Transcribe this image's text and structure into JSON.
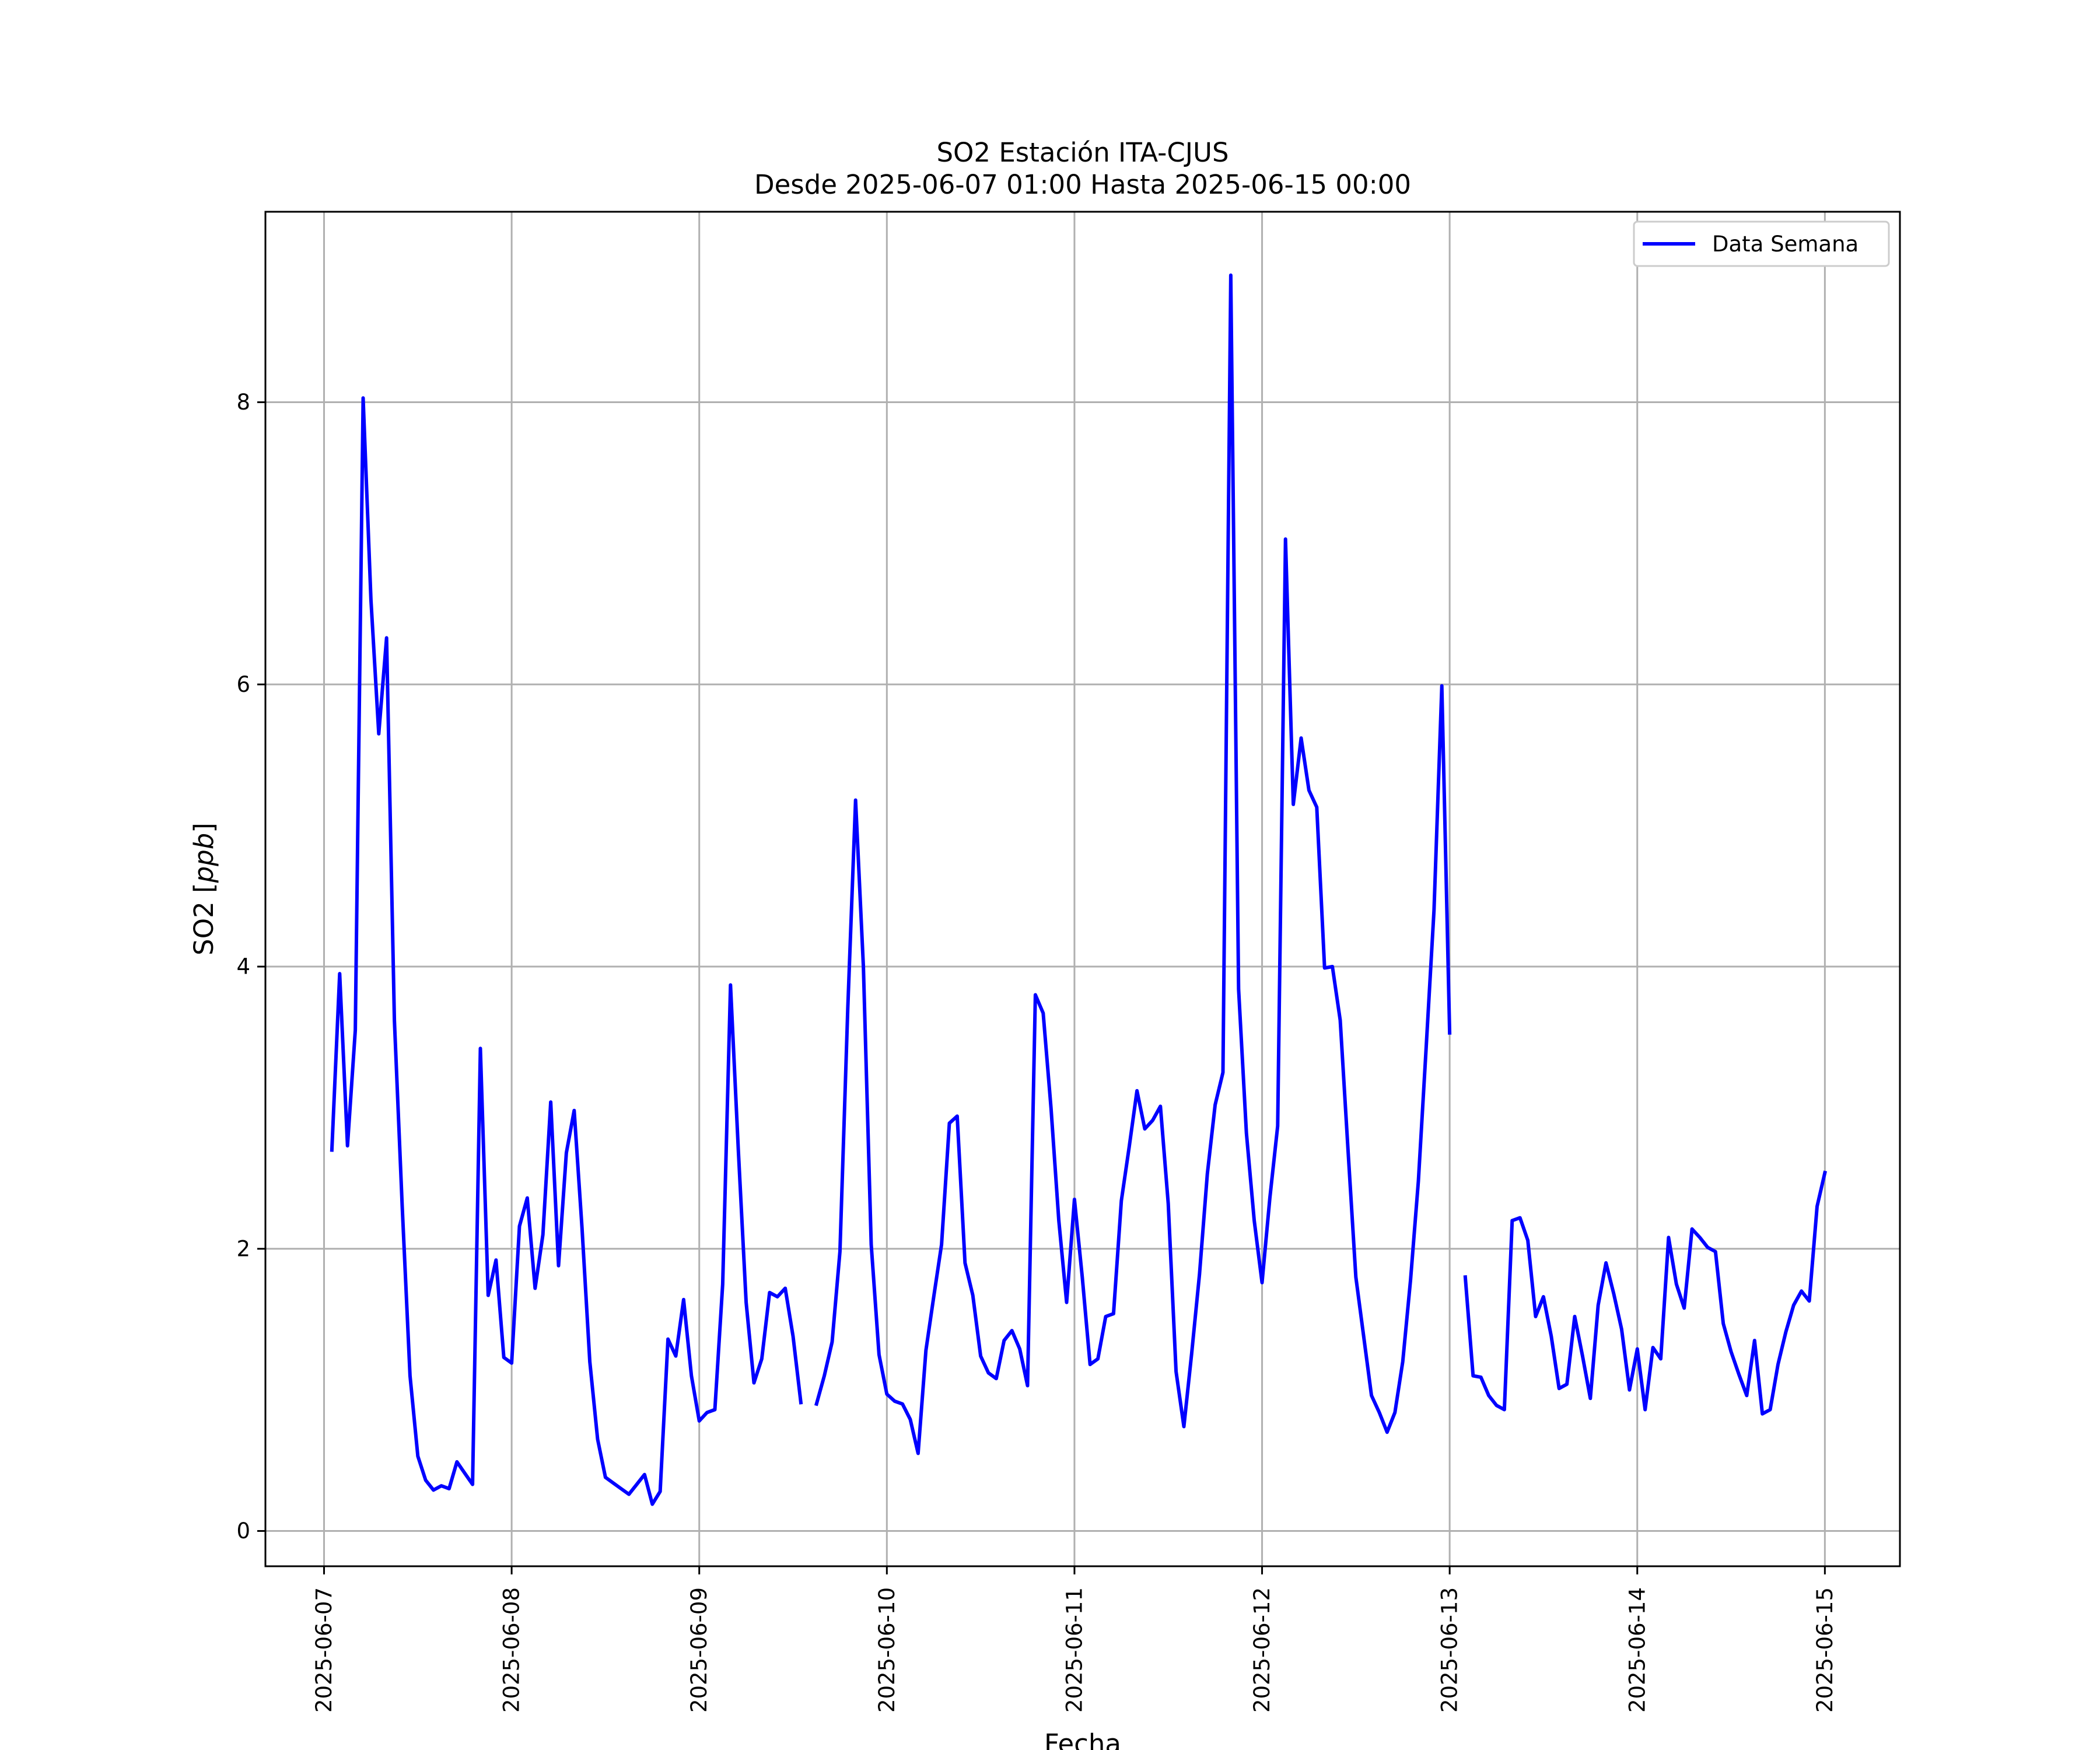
{
  "chart_data": {
    "type": "line",
    "title": "SO2 Estación ITA-CJUS",
    "subtitle": "Desde 2025-06-07 01:00 Hasta 2025-06-15 00:00",
    "xlabel": "Fecha",
    "ylabel": "SO2 [ppb]",
    "xlim": [
      "2025-06-06 16:30",
      "2025-06-15 09:36"
    ],
    "ylim": [
      -0.25,
      9.35
    ],
    "x_ticks": [
      "2025-06-07",
      "2025-06-08",
      "2025-06-09",
      "2025-06-10",
      "2025-06-11",
      "2025-06-12",
      "2025-06-13",
      "2025-06-14",
      "2025-06-15"
    ],
    "y_ticks": [
      0,
      2,
      4,
      6,
      8
    ],
    "grid": true,
    "legend_position": "top-right",
    "series": [
      {
        "name": "Data Semana",
        "color": "#0000ff",
        "points": [
          [
            "2025-06-07 01:00",
            2.7
          ],
          [
            "2025-06-07 02:00",
            3.95
          ],
          [
            "2025-06-07 03:00",
            2.73
          ],
          [
            "2025-06-07 04:00",
            3.55
          ],
          [
            "2025-06-07 05:00",
            8.03
          ],
          [
            "2025-06-07 06:00",
            6.6
          ],
          [
            "2025-06-07 07:00",
            5.65
          ],
          [
            "2025-06-07 08:00",
            6.33
          ],
          [
            "2025-06-07 09:00",
            3.62
          ],
          [
            "2025-06-07 10:00",
            2.3
          ],
          [
            "2025-06-07 11:00",
            1.1
          ],
          [
            "2025-06-07 12:00",
            0.53
          ],
          [
            "2025-06-07 13:00",
            0.36
          ],
          [
            "2025-06-07 14:00",
            0.29
          ],
          [
            "2025-06-07 15:00",
            0.32
          ],
          [
            "2025-06-07 16:00",
            0.3
          ],
          [
            "2025-06-07 17:00",
            0.49
          ],
          [
            "2025-06-07 18:00",
            0.41
          ],
          [
            "2025-06-07 19:00",
            0.33
          ],
          [
            "2025-06-07 20:00",
            3.42
          ],
          [
            "2025-06-07 21:00",
            1.67
          ],
          [
            "2025-06-07 22:00",
            1.92
          ],
          [
            "2025-06-07 23:00",
            1.23
          ],
          [
            "2025-06-08 00:00",
            1.19
          ],
          [
            "2025-06-08 01:00",
            2.16
          ],
          [
            "2025-06-08 02:00",
            2.36
          ],
          [
            "2025-06-08 03:00",
            1.72
          ],
          [
            "2025-06-08 04:00",
            2.1
          ],
          [
            "2025-06-08 05:00",
            3.04
          ],
          [
            "2025-06-08 06:00",
            1.88
          ],
          [
            "2025-06-08 07:00",
            2.68
          ],
          [
            "2025-06-08 08:00",
            2.98
          ],
          [
            "2025-06-08 09:00",
            2.15
          ],
          [
            "2025-06-08 10:00",
            1.2
          ],
          [
            "2025-06-08 11:00",
            0.65
          ],
          [
            "2025-06-08 12:00",
            0.38
          ],
          [
            "2025-06-08 13:00",
            0.34
          ],
          [
            "2025-06-08 14:00",
            0.3
          ],
          [
            "2025-06-08 15:00",
            0.26
          ],
          [
            "2025-06-08 16:00",
            0.33
          ],
          [
            "2025-06-08 17:00",
            0.4
          ],
          [
            "2025-06-08 18:00",
            0.19
          ],
          [
            "2025-06-08 19:00",
            0.28
          ],
          [
            "2025-06-08 20:00",
            1.36
          ],
          [
            "2025-06-08 21:00",
            1.24
          ],
          [
            "2025-06-08 22:00",
            1.64
          ],
          [
            "2025-06-08 23:00",
            1.1
          ],
          [
            "2025-06-09 00:00",
            0.78
          ],
          [
            "2025-06-09 01:00",
            0.84
          ],
          [
            "2025-06-09 02:00",
            0.86
          ],
          [
            "2025-06-09 03:00",
            1.75
          ],
          [
            "2025-06-09 04:00",
            3.87
          ],
          [
            "2025-06-09 05:00",
            2.7
          ],
          [
            "2025-06-09 06:00",
            1.62
          ],
          [
            "2025-06-09 07:00",
            1.05
          ],
          [
            "2025-06-09 08:00",
            1.22
          ],
          [
            "2025-06-09 09:00",
            1.69
          ],
          [
            "2025-06-09 10:00",
            1.66
          ],
          [
            "2025-06-09 11:00",
            1.72
          ],
          [
            "2025-06-09 12:00",
            1.38
          ],
          [
            "2025-06-09 13:00",
            0.91
          ],
          [
            "2025-06-09 14:00",
            null
          ],
          [
            "2025-06-09 15:00",
            0.9
          ],
          [
            "2025-06-09 16:00",
            1.1
          ],
          [
            "2025-06-09 17:00",
            1.34
          ],
          [
            "2025-06-09 18:00",
            1.98
          ],
          [
            "2025-06-09 19:00",
            3.7
          ],
          [
            "2025-06-09 20:00",
            5.18
          ],
          [
            "2025-06-09 21:00",
            4.0
          ],
          [
            "2025-06-09 22:00",
            2.03
          ],
          [
            "2025-06-09 23:00",
            1.25
          ],
          [
            "2025-06-10 00:00",
            0.97
          ],
          [
            "2025-06-10 01:00",
            0.92
          ],
          [
            "2025-06-10 02:00",
            0.9
          ],
          [
            "2025-06-10 03:00",
            0.79
          ],
          [
            "2025-06-10 04:00",
            0.55
          ],
          [
            "2025-06-10 05:00",
            1.28
          ],
          [
            "2025-06-10 06:00",
            1.66
          ],
          [
            "2025-06-10 07:00",
            2.03
          ],
          [
            "2025-06-10 08:00",
            2.89
          ],
          [
            "2025-06-10 09:00",
            2.94
          ],
          [
            "2025-06-10 10:00",
            1.9
          ],
          [
            "2025-06-10 11:00",
            1.67
          ],
          [
            "2025-06-10 12:00",
            1.24
          ],
          [
            "2025-06-10 13:00",
            1.12
          ],
          [
            "2025-06-10 14:00",
            1.08
          ],
          [
            "2025-06-10 15:00",
            1.35
          ],
          [
            "2025-06-10 16:00",
            1.42
          ],
          [
            "2025-06-10 17:00",
            1.29
          ],
          [
            "2025-06-10 18:00",
            1.03
          ],
          [
            "2025-06-10 19:00",
            3.8
          ],
          [
            "2025-06-10 20:00",
            3.67
          ],
          [
            "2025-06-10 21:00",
            3.0
          ],
          [
            "2025-06-10 22:00",
            2.2
          ],
          [
            "2025-06-10 23:00",
            1.62
          ],
          [
            "2025-06-11 00:00",
            2.35
          ],
          [
            "2025-06-11 01:00",
            1.8
          ],
          [
            "2025-06-11 02:00",
            1.18
          ],
          [
            "2025-06-11 03:00",
            1.22
          ],
          [
            "2025-06-11 04:00",
            1.52
          ],
          [
            "2025-06-11 05:00",
            1.54
          ],
          [
            "2025-06-11 06:00",
            2.34
          ],
          [
            "2025-06-11 07:00",
            2.72
          ],
          [
            "2025-06-11 08:00",
            3.12
          ],
          [
            "2025-06-11 09:00",
            2.85
          ],
          [
            "2025-06-11 10:00",
            2.91
          ],
          [
            "2025-06-11 11:00",
            3.01
          ],
          [
            "2025-06-11 12:00",
            2.32
          ],
          [
            "2025-06-11 13:00",
            1.13
          ],
          [
            "2025-06-11 14:00",
            0.74
          ],
          [
            "2025-06-11 15:00",
            1.26
          ],
          [
            "2025-06-11 16:00",
            1.82
          ],
          [
            "2025-06-11 17:00",
            2.53
          ],
          [
            "2025-06-11 18:00",
            3.02
          ],
          [
            "2025-06-11 19:00",
            3.25
          ],
          [
            "2025-06-11 20:00",
            8.9
          ],
          [
            "2025-06-11 21:00",
            3.84
          ],
          [
            "2025-06-11 22:00",
            2.82
          ],
          [
            "2025-06-11 23:00",
            2.2
          ],
          [
            "2025-06-12 00:00",
            1.76
          ],
          [
            "2025-06-12 01:00",
            2.36
          ],
          [
            "2025-06-12 02:00",
            2.87
          ],
          [
            "2025-06-12 03:00",
            7.03
          ],
          [
            "2025-06-12 04:00",
            5.15
          ],
          [
            "2025-06-12 05:00",
            5.62
          ],
          [
            "2025-06-12 06:00",
            5.25
          ],
          [
            "2025-06-12 07:00",
            5.13
          ],
          [
            "2025-06-12 08:00",
            3.99
          ],
          [
            "2025-06-12 09:00",
            4.0
          ],
          [
            "2025-06-12 10:00",
            3.62
          ],
          [
            "2025-06-12 11:00",
            2.7
          ],
          [
            "2025-06-12 12:00",
            1.8
          ],
          [
            "2025-06-12 13:00",
            1.38
          ],
          [
            "2025-06-12 14:00",
            0.96
          ],
          [
            "2025-06-12 15:00",
            0.84
          ],
          [
            "2025-06-12 16:00",
            0.7
          ],
          [
            "2025-06-12 17:00",
            0.84
          ],
          [
            "2025-06-12 18:00",
            1.2
          ],
          [
            "2025-06-12 19:00",
            1.78
          ],
          [
            "2025-06-12 20:00",
            2.48
          ],
          [
            "2025-06-12 21:00",
            3.43
          ],
          [
            "2025-06-12 22:00",
            4.4
          ],
          [
            "2025-06-12 23:00",
            5.99
          ],
          [
            "2025-06-13 00:00",
            3.53
          ],
          [
            "2025-06-13 01:00",
            null
          ],
          [
            "2025-06-13 02:00",
            1.8
          ],
          [
            "2025-06-13 03:00",
            1.1
          ],
          [
            "2025-06-13 04:00",
            1.09
          ],
          [
            "2025-06-13 05:00",
            0.96
          ],
          [
            "2025-06-13 06:00",
            0.89
          ],
          [
            "2025-06-13 07:00",
            0.86
          ],
          [
            "2025-06-13 08:00",
            2.2
          ],
          [
            "2025-06-13 09:00",
            2.22
          ],
          [
            "2025-06-13 10:00",
            2.06
          ],
          [
            "2025-06-13 11:00",
            1.52
          ],
          [
            "2025-06-13 12:00",
            1.66
          ],
          [
            "2025-06-13 13:00",
            1.38
          ],
          [
            "2025-06-13 14:00",
            1.01
          ],
          [
            "2025-06-13 15:00",
            1.04
          ],
          [
            "2025-06-13 16:00",
            1.52
          ],
          [
            "2025-06-13 17:00",
            1.24
          ],
          [
            "2025-06-13 18:00",
            0.94
          ],
          [
            "2025-06-13 19:00",
            1.6
          ],
          [
            "2025-06-13 20:00",
            1.9
          ],
          [
            "2025-06-13 21:00",
            1.68
          ],
          [
            "2025-06-13 22:00",
            1.43
          ],
          [
            "2025-06-13 23:00",
            1.0
          ],
          [
            "2025-06-14 00:00",
            1.29
          ],
          [
            "2025-06-14 01:00",
            0.86
          ],
          [
            "2025-06-14 02:00",
            1.3
          ],
          [
            "2025-06-14 03:00",
            1.22
          ],
          [
            "2025-06-14 04:00",
            2.08
          ],
          [
            "2025-06-14 05:00",
            1.75
          ],
          [
            "2025-06-14 06:00",
            1.58
          ],
          [
            "2025-06-14 07:00",
            2.14
          ],
          [
            "2025-06-14 08:00",
            2.08
          ],
          [
            "2025-06-14 09:00",
            2.01
          ],
          [
            "2025-06-14 10:00",
            1.98
          ],
          [
            "2025-06-14 11:00",
            1.47
          ],
          [
            "2025-06-14 12:00",
            1.27
          ],
          [
            "2025-06-14 13:00",
            1.11
          ],
          [
            "2025-06-14 14:00",
            0.96
          ],
          [
            "2025-06-14 15:00",
            1.35
          ],
          [
            "2025-06-14 16:00",
            0.83
          ],
          [
            "2025-06-14 17:00",
            0.86
          ],
          [
            "2025-06-14 18:00",
            1.18
          ],
          [
            "2025-06-14 19:00",
            1.41
          ],
          [
            "2025-06-14 20:00",
            1.6
          ],
          [
            "2025-06-14 21:00",
            1.7
          ],
          [
            "2025-06-14 22:00",
            1.63
          ],
          [
            "2025-06-14 23:00",
            2.3
          ],
          [
            "2025-06-15 00:00",
            2.54
          ]
        ]
      }
    ]
  }
}
